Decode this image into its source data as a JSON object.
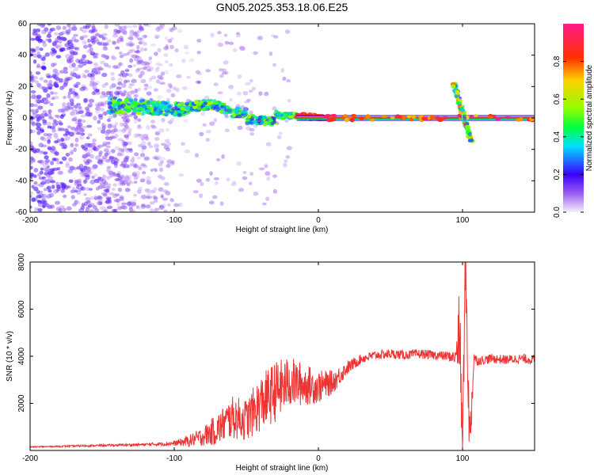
{
  "figure": {
    "title": "GN05.2025.353.18.06.E25"
  },
  "chart_data": [
    {
      "type": "heatmap",
      "name": "spectrogram",
      "xlabel": "Height of straight line (km)",
      "ylabel": "Frequency (Hz)",
      "xlim": [
        -200,
        150
      ],
      "ylim": [
        -60,
        60
      ],
      "xticks": [
        -200,
        -100,
        0,
        100
      ],
      "yticks": [
        -60,
        -40,
        -20,
        0,
        20,
        40,
        60
      ],
      "colorbar": {
        "label": "Normalized spectral amplitude",
        "range": [
          0,
          1
        ],
        "ticks": [
          "0.0",
          "0.2",
          "0.4",
          "0.6",
          "0.8"
        ],
        "tick_values": [
          0.0,
          0.2,
          0.4,
          0.6,
          0.8
        ]
      },
      "carrier_line": {
        "frequency_hz": 0,
        "from_km": -15,
        "to_km": 150
      },
      "features": [
        {
          "name": "noise_region",
          "x_range": [
            -200,
            -85
          ],
          "y_range": [
            -60,
            60
          ],
          "amplitude": 0.15
        },
        {
          "name": "drifting_signal",
          "x_range": [
            -145,
            10
          ],
          "freq_start_hz": 8,
          "freq_end_hz": 0,
          "amplitude": 0.45
        },
        {
          "name": "satellite_crossing",
          "x_center": 100,
          "freq_range_hz": [
            -15,
            22
          ],
          "amplitude": 0.7
        }
      ]
    },
    {
      "type": "line",
      "name": "snr",
      "xlabel": "Height of straight line (km)",
      "ylabel": "SNR (10 * v/v)",
      "xlim": [
        -200,
        150
      ],
      "ylim": [
        0,
        8000
      ],
      "xticks": [
        -200,
        -100,
        0,
        100
      ],
      "yticks": [
        2000,
        4000,
        6000,
        8000
      ],
      "color": "#ee3333",
      "series": {
        "x": [
          -200,
          -160,
          -120,
          -100,
          -90,
          -80,
          -70,
          -60,
          -50,
          -40,
          -30,
          -20,
          -10,
          0,
          10,
          20,
          30,
          40,
          50,
          60,
          70,
          80,
          90,
          95,
          98,
          100,
          102,
          105,
          108,
          110,
          120,
          130,
          140,
          150
        ],
        "values": [
          150,
          200,
          250,
          300,
          400,
          600,
          900,
          1400,
          1300,
          2000,
          2500,
          2900,
          2800,
          2700,
          2900,
          3500,
          3900,
          4050,
          4100,
          4050,
          4100,
          4050,
          4000,
          3950,
          5000,
          200,
          8000,
          300,
          4000,
          3800,
          3900,
          3850,
          3900,
          3850
        ],
        "noise": [
          20,
          40,
          60,
          100,
          250,
          400,
          700,
          900,
          900,
          1200,
          1300,
          1100,
          900,
          700,
          500,
          300,
          200,
          200,
          200,
          200,
          200,
          200,
          200,
          300,
          2000,
          1000,
          1500,
          1500,
          300,
          200,
          200,
          200,
          200,
          200
        ]
      }
    }
  ]
}
